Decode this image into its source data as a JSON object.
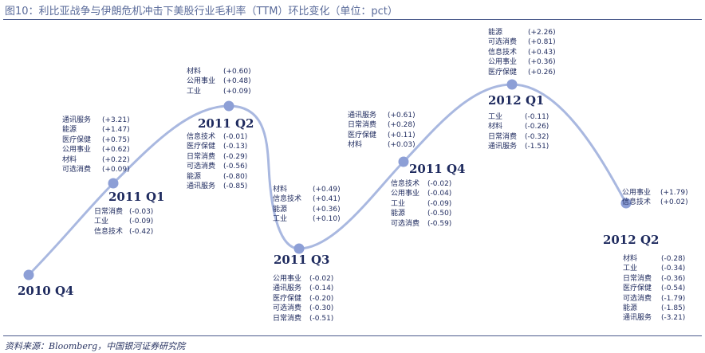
{
  "title": "图10：利比亚战争与伊朗危机冲击下美股行业毛利率（TTM）环比变化（单位：pct）",
  "source": "资料来源：Bloomberg，中国银河证券研究院",
  "colors": {
    "curve": "#a9b8e0",
    "dot": "#8d9fd6",
    "text": "#1e2a5e",
    "rule": "#4a5a8c"
  },
  "quarters": [
    {
      "label": "2010 Q4"
    },
    {
      "label": "2011 Q1"
    },
    {
      "label": "2011 Q2"
    },
    {
      "label": "2011 Q3"
    },
    {
      "label": "2011 Q4"
    },
    {
      "label": "2012 Q1"
    },
    {
      "label": "2012 Q2"
    }
  ],
  "lists": {
    "q1_up": [
      {
        "name": "通讯服务",
        "value": "(+3.21)"
      },
      {
        "name": "能源",
        "value": "(+1.47)"
      },
      {
        "name": "医疗保健",
        "value": "(+0.75)"
      },
      {
        "name": "公用事业",
        "value": "(+0.62)"
      },
      {
        "name": "材料",
        "value": "(+0.22)"
      },
      {
        "name": "可选消费",
        "value": "(+0.09)"
      }
    ],
    "q1_down": [
      {
        "name": "日常消费",
        "value": "(-0.03)"
      },
      {
        "name": "工业",
        "value": "(-0.09)"
      },
      {
        "name": "信息技术",
        "value": "(-0.42)"
      }
    ],
    "q2_up": [
      {
        "name": "材料",
        "value": "(+0.60)"
      },
      {
        "name": "公用事业",
        "value": "(+0.48)"
      },
      {
        "name": "工业",
        "value": "(+0.09)"
      }
    ],
    "q2_down": [
      {
        "name": "信息技术",
        "value": "(-0.01)"
      },
      {
        "name": "医疗保健",
        "value": "(-0.13)"
      },
      {
        "name": "日常消费",
        "value": "(-0.29)"
      },
      {
        "name": "可选消费",
        "value": "(-0.56)"
      },
      {
        "name": "能源",
        "value": "(-0.80)"
      },
      {
        "name": "通讯服务",
        "value": "(-0.85)"
      }
    ],
    "q3_up": [
      {
        "name": "材料",
        "value": "(+0.49)"
      },
      {
        "name": "信息技术",
        "value": "(+0.41)"
      },
      {
        "name": "能源",
        "value": "(+0.36)"
      },
      {
        "name": "工业",
        "value": "(+0.10)"
      }
    ],
    "q3_down": [
      {
        "name": "公用事业",
        "value": "(-0.02)"
      },
      {
        "name": "通讯服务",
        "value": "(-0.14)"
      },
      {
        "name": "医疗保健",
        "value": "(-0.20)"
      },
      {
        "name": "可选消费",
        "value": "(-0.30)"
      },
      {
        "name": "日常消费",
        "value": "(-0.51)"
      }
    ],
    "q4_up": [
      {
        "name": "通讯服务",
        "value": "(+0.61)"
      },
      {
        "name": "日常消费",
        "value": "(+0.28)"
      },
      {
        "name": "医疗保健",
        "value": "(+0.11)"
      },
      {
        "name": "材料",
        "value": "(+0.03)"
      }
    ],
    "q4_down": [
      {
        "name": "信息技术",
        "value": "(-0.02)"
      },
      {
        "name": "公用事业",
        "value": "(-0.04)"
      },
      {
        "name": "工业",
        "value": "(-0.09)"
      },
      {
        "name": "能源",
        "value": "(-0.50)"
      },
      {
        "name": "可选消费",
        "value": "(-0.59)"
      }
    ],
    "q5_up": [
      {
        "name": "能源",
        "value": "(+2.26)"
      },
      {
        "name": "可选消费",
        "value": "(+0.81)"
      },
      {
        "name": "信息技术",
        "value": "(+0.43)"
      },
      {
        "name": "公用事业",
        "value": "(+0.36)"
      },
      {
        "name": "医疗保健",
        "value": "(+0.26)"
      }
    ],
    "q5_down": [
      {
        "name": "工业",
        "value": "(-0.11)"
      },
      {
        "name": "材料",
        "value": "(-0.26)"
      },
      {
        "name": "日常消费",
        "value": "(-0.32)"
      },
      {
        "name": "通讯服务",
        "value": "(-1.51)"
      }
    ],
    "q6_up": [
      {
        "name": "公用事业",
        "value": "(+1.79)"
      },
      {
        "name": "信息技术",
        "value": "(+0.02)"
      }
    ],
    "q6_down": [
      {
        "name": "材料",
        "value": "(-0.28)"
      },
      {
        "name": "工业",
        "value": "(-0.34)"
      },
      {
        "name": "日常消费",
        "value": "(-0.36)"
      },
      {
        "name": "医疗保健",
        "value": "(-0.54)"
      },
      {
        "name": "可选消费",
        "value": "(-1.79)"
      },
      {
        "name": "能源",
        "value": "(-1.85)"
      },
      {
        "name": "通讯服务",
        "value": "(-3.21)"
      }
    ]
  }
}
